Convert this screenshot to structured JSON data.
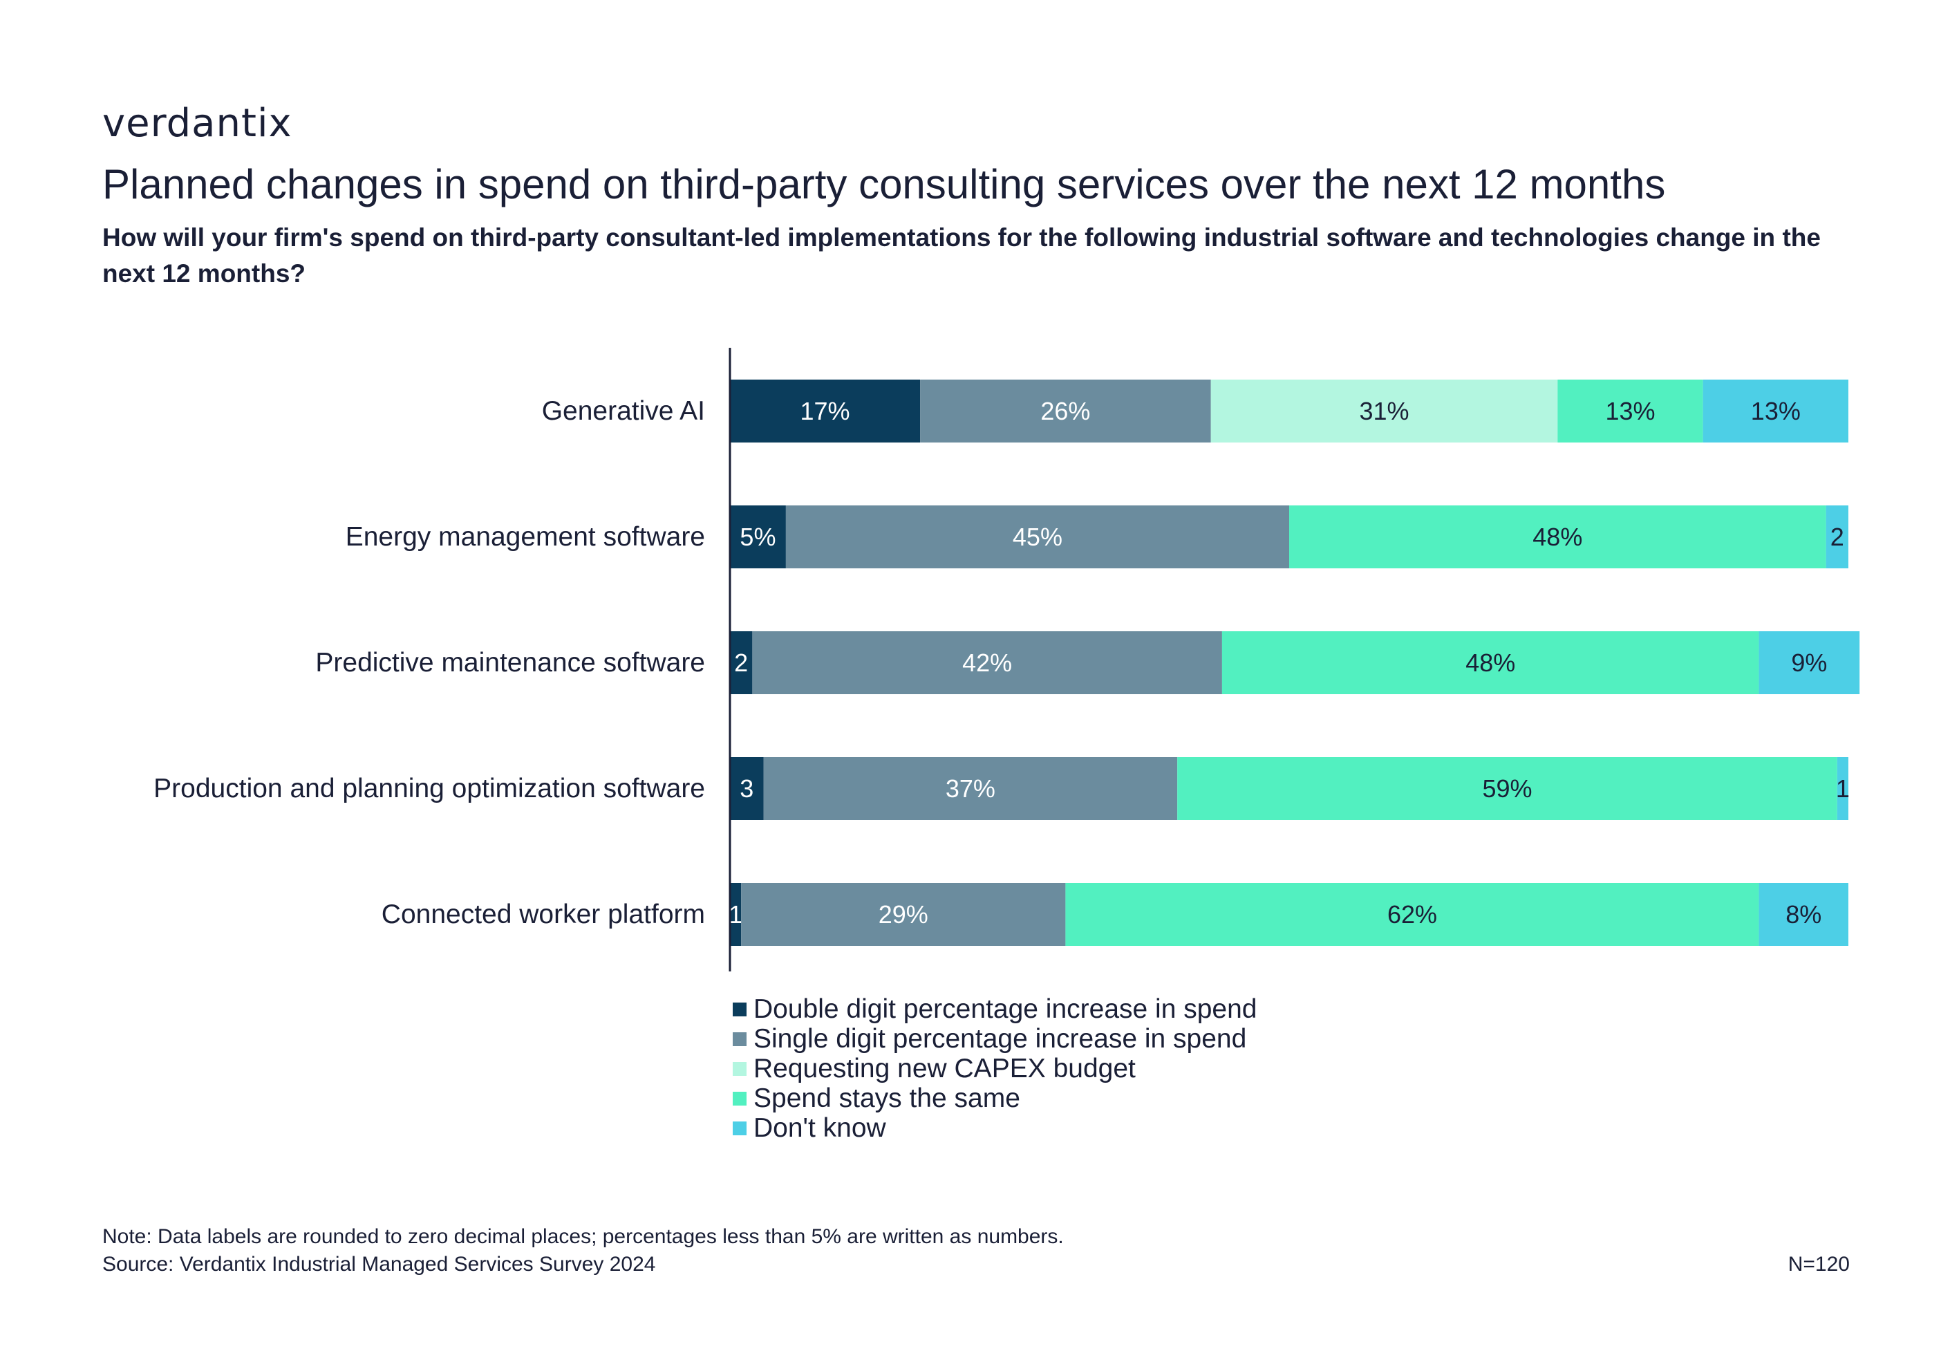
{
  "logo_text": "verdantix",
  "header": {
    "title": "Planned changes in spend on third-party consulting services over the next 12 months",
    "subtitle": "How will your firm's spend on third-party consultant-led implementations for the following industrial software and technologies change in the next 12 months?"
  },
  "chart_data": {
    "type": "bar",
    "orientation": "horizontal",
    "stacked": true,
    "title": "Planned changes in spend on third-party consulting services over the next 12 months",
    "categories": [
      "Generative AI",
      "Energy management software",
      "Predictive maintenance software",
      "Production and planning optimization software",
      "Connected worker platform"
    ],
    "series": [
      {
        "name": "Double digit percentage increase in spend",
        "color": "#0b3d5c",
        "label_color": "#ffffff",
        "values": [
          17,
          5,
          2,
          3,
          1
        ],
        "labels": [
          "17%",
          "5%",
          "2",
          "3",
          "1"
        ]
      },
      {
        "name": "Single digit percentage increase in spend",
        "color": "#6b8c9e",
        "label_color": "#ffffff",
        "values": [
          26,
          45,
          42,
          37,
          29
        ],
        "labels": [
          "26%",
          "45%",
          "42%",
          "37%",
          "29%"
        ]
      },
      {
        "name": "Requesting new CAPEX budget",
        "color": "#b3f6e0",
        "label_color": "#1a1f36",
        "values": [
          31,
          0,
          0,
          0,
          0
        ],
        "labels": [
          "31%",
          "",
          "",
          "",
          ""
        ]
      },
      {
        "name": "Spend stays the same",
        "color": "#52f0c0",
        "label_color": "#1a1f36",
        "values": [
          13,
          48,
          48,
          59,
          62
        ],
        "labels": [
          "13%",
          "48%",
          "48%",
          "59%",
          "62%"
        ]
      },
      {
        "name": "Don't know",
        "color": "#4dcfe6",
        "label_color": "#1a1f36",
        "values": [
          13,
          2,
          9,
          1,
          8
        ],
        "labels": [
          "13%",
          "2",
          "9%",
          "1",
          "8%"
        ]
      }
    ],
    "xlim": [
      0,
      100
    ],
    "grid": false,
    "legend_position": "bottom"
  },
  "footer": {
    "note": "Note: Data labels are rounded to zero decimal places; percentages less than 5% are written as numbers.",
    "source": "Source: Verdantix Industrial Managed Services Survey 2024",
    "sample": "N=120"
  }
}
